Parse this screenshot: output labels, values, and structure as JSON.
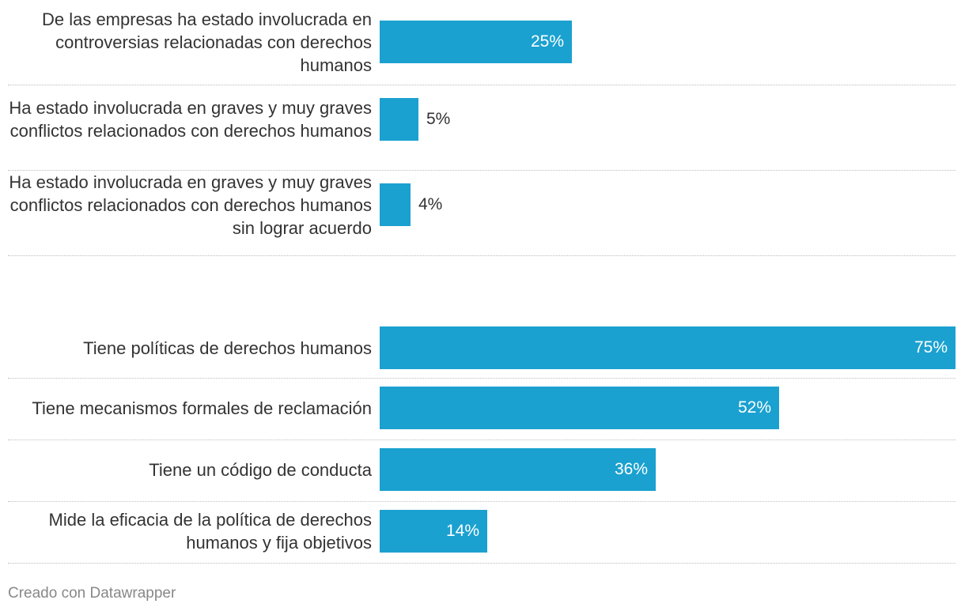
{
  "chart_data": {
    "type": "bar",
    "orientation": "horizontal",
    "unit": "%",
    "xlim": [
      0,
      75
    ],
    "bar_color": "#1aa1d0",
    "groups": [
      {
        "rows": [
          {
            "label": "De las empresas ha estado involucrada en controversias relacionadas con derechos humanos",
            "value": 25,
            "value_label": "25%"
          },
          {
            "label": "Ha estado involucrada en graves y muy graves conflictos relacionados con derechos humanos",
            "value": 5,
            "value_label": "5%"
          },
          {
            "label": "Ha estado involucrada en graves y muy graves conflictos relacionados con derechos humanos sin lograr acuerdo",
            "value": 4,
            "value_label": "4%"
          }
        ]
      },
      {
        "rows": [
          {
            "label": "Tiene políticas de derechos humanos",
            "value": 75,
            "value_label": "75%"
          },
          {
            "label": "Tiene mecanismos formales de reclamación",
            "value": 52,
            "value_label": "52%"
          },
          {
            "label": "Tiene un código de conducta",
            "value": 36,
            "value_label": "36%"
          },
          {
            "label": "Mide la eficacia de la política de derechos humanos y fija objetivos",
            "value": 14,
            "value_label": "14%"
          }
        ]
      }
    ]
  },
  "footer": {
    "credit": "Creado con Datawrapper"
  }
}
